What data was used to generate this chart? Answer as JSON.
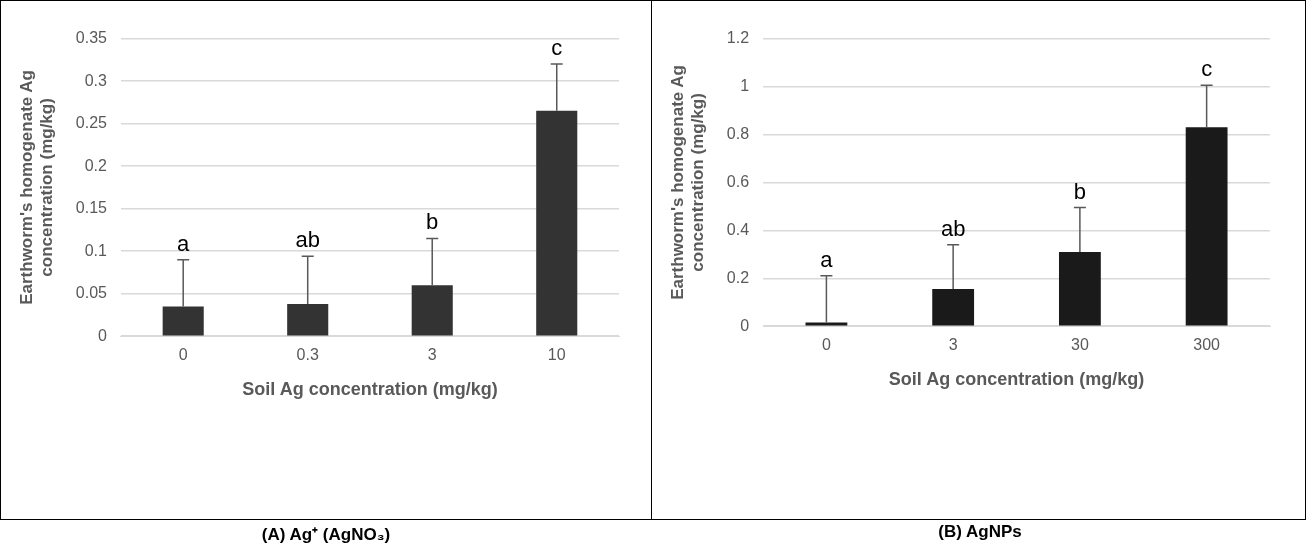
{
  "chart_data": [
    {
      "type": "bar",
      "title": "(A) Ag⁺ (AgNO₃)",
      "xlabel": "Soil Ag concentration (mg/kg)",
      "ylabel": "Earthworm's homogenate Ag concentration (mg/kg)",
      "categories": [
        "0",
        "0.3",
        "3",
        "10"
      ],
      "values": [
        0.035,
        0.038,
        0.06,
        0.265
      ],
      "color": "#333333",
      "errors": [
        [
          0.035,
          0.09
        ],
        [
          0.038,
          0.094
        ],
        [
          0.06,
          0.115
        ],
        [
          0.265,
          0.32
        ]
      ],
      "ylim": [
        0,
        0.35
      ],
      "yticks": [
        0,
        0.05,
        0.1,
        0.15,
        0.2,
        0.25,
        0.3,
        0.35
      ],
      "grid": "y",
      "annotations": [
        {
          "text": "a",
          "x": "0",
          "y": 0.09
        },
        {
          "text": "ab",
          "x": "0.3",
          "y": 0.094
        },
        {
          "text": "b",
          "x": "3",
          "y": 0.115
        },
        {
          "text": "c",
          "x": "10",
          "y": 0.32
        }
      ]
    },
    {
      "type": "bar",
      "title": "(B) AgNPs",
      "xlabel": "Soil Ag concentration (mg/kg)",
      "ylabel": "Earthworm's homogenate Ag concentration (mg/kg)",
      "categories": [
        "0",
        "3",
        "30",
        "300"
      ],
      "values": [
        0.015,
        0.155,
        0.31,
        0.83
      ],
      "color": "#1a1a1a",
      "errors": [
        [
          0.015,
          0.21
        ],
        [
          0.155,
          0.34
        ],
        [
          0.31,
          0.495
        ],
        [
          0.83,
          1.005
        ]
      ],
      "ylim": [
        0,
        1.2
      ],
      "yticks": [
        0,
        0.2,
        0.4,
        0.6,
        0.8,
        1,
        1.2
      ],
      "grid": "y",
      "annotations": [
        {
          "text": "a",
          "x": "0",
          "y": 0.21
        },
        {
          "text": "ab",
          "x": "3",
          "y": 0.34
        },
        {
          "text": "b",
          "x": "30",
          "y": 0.495
        },
        {
          "text": "c",
          "x": "300",
          "y": 1.005
        }
      ]
    }
  ]
}
